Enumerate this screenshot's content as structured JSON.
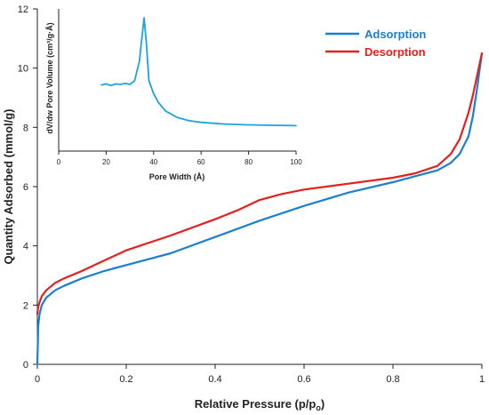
{
  "chart_data": [
    {
      "type": "line",
      "xlabel": "Relative Pressure (p/p",
      "xlabel_sub": "o",
      "xlabel_end": ")",
      "ylabel": "Quantity Adsorbed (mmol/g)",
      "xlim": [
        0,
        1
      ],
      "ylim": [
        0,
        12
      ],
      "x_ticks": [
        "0",
        "0.2",
        "0.4",
        "0.6",
        "0.8",
        "1"
      ],
      "y_ticks": [
        "0",
        "2",
        "4",
        "6",
        "8",
        "10",
        "12"
      ],
      "legend_position": "top-right",
      "grid": false,
      "series": [
        {
          "name": "Adsorption",
          "color": "#1a7fd1",
          "x": [
            0.0,
            0.002,
            0.005,
            0.01,
            0.02,
            0.04,
            0.06,
            0.1,
            0.15,
            0.2,
            0.3,
            0.4,
            0.5,
            0.6,
            0.7,
            0.8,
            0.85,
            0.9,
            0.93,
            0.95,
            0.97,
            0.98,
            0.99,
            1.0
          ],
          "y": [
            0.0,
            1.3,
            1.7,
            2.0,
            2.25,
            2.5,
            2.65,
            2.9,
            3.15,
            3.35,
            3.75,
            4.3,
            4.85,
            5.35,
            5.8,
            6.15,
            6.35,
            6.55,
            6.8,
            7.1,
            7.7,
            8.4,
            9.4,
            10.5
          ]
        },
        {
          "name": "Desorption",
          "color": "#e3201b",
          "x": [
            0.0,
            0.002,
            0.005,
            0.01,
            0.02,
            0.04,
            0.06,
            0.1,
            0.15,
            0.2,
            0.3,
            0.4,
            0.45,
            0.5,
            0.55,
            0.6,
            0.7,
            0.8,
            0.85,
            0.9,
            0.93,
            0.95,
            0.97,
            0.98,
            0.99,
            1.0
          ],
          "y": [
            1.7,
            1.95,
            2.1,
            2.3,
            2.5,
            2.75,
            2.9,
            3.15,
            3.5,
            3.85,
            4.35,
            4.9,
            5.2,
            5.55,
            5.75,
            5.9,
            6.1,
            6.3,
            6.45,
            6.7,
            7.1,
            7.6,
            8.5,
            9.1,
            9.8,
            10.5
          ]
        }
      ]
    },
    {
      "type": "line",
      "xlabel": "Pore Width (Å)",
      "ylabel": "dV/dw Pore Volume (cm³/g·Å)",
      "xlim": [
        0,
        100
      ],
      "x_ticks": [
        "0",
        "20",
        "40",
        "60",
        "80",
        "100"
      ],
      "y_ticks": [],
      "grid": false,
      "position": "inset top-left",
      "series": [
        {
          "color": "#1aa3e0",
          "x": [
            18,
            20,
            22,
            24,
            26,
            28,
            30,
            32,
            34,
            35,
            36,
            37,
            38,
            40,
            42,
            45,
            50,
            55,
            60,
            70,
            80,
            90,
            100
          ],
          "y": [
            0.38,
            0.39,
            0.375,
            0.39,
            0.385,
            0.395,
            0.385,
            0.42,
            0.6,
            0.8,
            1.0,
            0.75,
            0.42,
            0.3,
            0.22,
            0.14,
            0.08,
            0.05,
            0.035,
            0.02,
            0.012,
            0.008,
            0.005
          ]
        }
      ]
    }
  ]
}
